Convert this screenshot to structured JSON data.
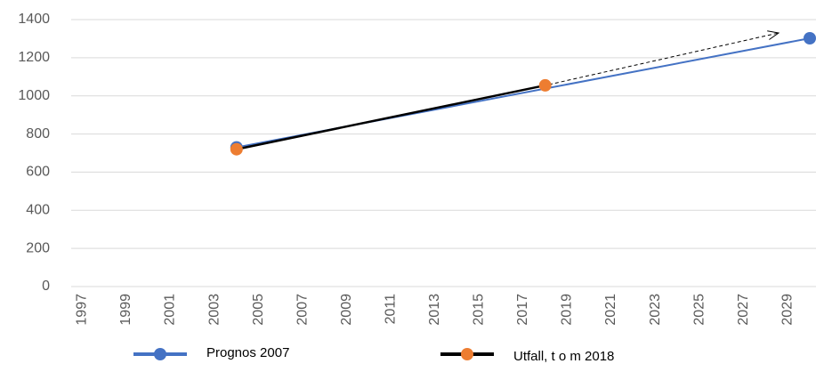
{
  "chart_data": {
    "type": "line",
    "series": [
      {
        "name": "Prognos 2007",
        "color": "#4472c4",
        "marker_color": "#4472c4",
        "x": [
          2004,
          2030
        ],
        "values": [
          730,
          1302
        ]
      },
      {
        "name": "Utfall, t o m 2018",
        "color": "#000000",
        "marker_color": "#ed7d31",
        "x": [
          2004,
          2018
        ],
        "values": [
          720,
          1055
        ]
      }
    ],
    "xlim": [
      1996.5,
      2030
    ],
    "xticks": [
      1997,
      1999,
      2001,
      2003,
      2005,
      2007,
      2009,
      2011,
      2013,
      2015,
      2017,
      2019,
      2021,
      2023,
      2025,
      2027,
      2029
    ],
    "ylim": [
      0,
      1400
    ],
    "yticks": [
      0,
      200,
      400,
      600,
      800,
      1000,
      1200,
      1400
    ],
    "grid": true,
    "legend": "bottom"
  }
}
